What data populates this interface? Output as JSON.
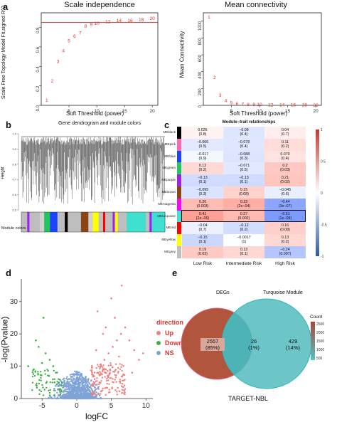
{
  "panel_a": {
    "letter": "a",
    "left": {
      "title": "Scale independence",
      "xlabel": "Soft Threshold (power)",
      "ylabel": "Scale Free Topology Model Fit,signed R^2",
      "yticks": [
        "0.0",
        "0.2",
        "0.4",
        "0.6",
        "0.8"
      ],
      "xticks": [
        "5",
        "10",
        "15",
        "20"
      ]
    },
    "right": {
      "title": "Mean connectivity",
      "xlabel": "Soft Threshold (power)",
      "ylabel": "Mean Connectivity",
      "yticks": [
        "0",
        "200",
        "400",
        "600",
        "800",
        "1000"
      ],
      "xticks": [
        "5",
        "10",
        "15",
        "20"
      ]
    }
  },
  "panel_b": {
    "letter": "b",
    "title": "Gene dendrogram and module colors",
    "ylabel": "Height",
    "yticks": [
      "1.0",
      "0.9",
      "0.8",
      "0.7",
      "0.6",
      "0.5"
    ],
    "module_label": "Module colors"
  },
  "panel_c": {
    "letter": "c",
    "title": "Module−trait relationships",
    "legend_ticks": [
      "1",
      "0.5",
      "0",
      "-0.5",
      "-1"
    ]
  },
  "panel_d": {
    "letter": "d",
    "xlabel": "logFC",
    "ylabel": "-log(Pvalue)",
    "xticks": [
      "-5",
      "0",
      "5",
      "10"
    ],
    "yticks": [
      "0",
      "10",
      "20",
      "30"
    ],
    "legend": {
      "title": "direction",
      "items": [
        {
          "label": "Up",
          "color": "#f08080"
        },
        {
          "label": "Down",
          "color": "#3cb043"
        },
        {
          "label": "NS",
          "color": "#7fa3d6"
        }
      ]
    }
  },
  "panel_e": {
    "letter": "e",
    "set_a": "DEGs",
    "set_b": "Turquoise Module",
    "left_count": "2557",
    "left_pct": "(85%)",
    "mid_count": "26",
    "mid_pct": "(1%)",
    "right_count": "429",
    "right_pct": "(14%)",
    "caption": "TARGET-NBL",
    "legend_title": "Count",
    "legend_ticks": [
      "2500",
      "2000",
      "1500",
      "1000",
      "500"
    ]
  },
  "chart_data": [
    {
      "type": "scatter",
      "title": "Scale independence",
      "xlabel": "Soft Threshold (power)",
      "ylabel": "Scale Free Topology Model Fit,signed R^2",
      "x": [
        1,
        2,
        3,
        4,
        5,
        6,
        7,
        8,
        9,
        10,
        12,
        14,
        16,
        18,
        20
      ],
      "y": [
        0.05,
        0.25,
        0.45,
        0.56,
        0.66,
        0.71,
        0.74,
        0.81,
        0.83,
        0.84,
        0.86,
        0.87,
        0.87,
        0.88,
        0.89
      ],
      "ylim": [
        0,
        0.95
      ],
      "xlim": [
        0,
        21
      ],
      "reference_line": 0.85
    },
    {
      "type": "scatter",
      "title": "Mean connectivity",
      "xlabel": "Soft Threshold (power)",
      "ylabel": "Mean Connectivity",
      "x": [
        1,
        2,
        3,
        4,
        5,
        6,
        7,
        8,
        9,
        10,
        12,
        14,
        16,
        18,
        20
      ],
      "y": [
        1050,
        330,
        120,
        55,
        30,
        18,
        13,
        10,
        8,
        7,
        5,
        4,
        3,
        3,
        2
      ],
      "ylim": [
        0,
        1100
      ],
      "xlim": [
        0,
        21
      ]
    },
    {
      "type": "heatmap",
      "title": "Module−trait relationships",
      "columns": [
        "Low Risk",
        "Intermediate Risk",
        "High Risk"
      ],
      "rows": [
        {
          "name": "MEblack",
          "color": "#000000",
          "cells": [
            [
              "0.026",
              "(0.8)",
              0.026
            ],
            [
              "−0.08",
              "(0.4)",
              -0.08
            ],
            [
              "0.04",
              "(0.7)",
              0.04
            ]
          ]
        },
        {
          "name": "MEpink",
          "color": "#ff69b4",
          "cells": [
            [
              "−0.066",
              "(0.5)",
              -0.066
            ],
            [
              "−0.078",
              "(0.4)",
              -0.078
            ],
            [
              "0.11",
              "(0.2)",
              0.11
            ]
          ]
        },
        {
          "name": "MEblue",
          "color": "#1e40ff",
          "cells": [
            [
              "−0.017",
              "(0.9)",
              -0.017
            ],
            [
              "−0.088",
              "(0.3)",
              -0.088
            ],
            [
              "0.079",
              "(0.4)",
              0.079
            ]
          ]
        },
        {
          "name": "MEgreen",
          "color": "#22c55e",
          "cells": [
            [
              "0.12",
              "(0.2)",
              0.12
            ],
            [
              "−0.071",
              "(0.5)",
              -0.071
            ],
            [
              "0.2",
              "(0.03)",
              0.2
            ]
          ]
        },
        {
          "name": "MEpurple",
          "color": "#a020f0",
          "cells": [
            [
              "−0.13",
              "(0.1)",
              -0.13
            ],
            [
              "−0.13",
              "(0.1)",
              -0.13
            ],
            [
              "0.21",
              "(0.02)",
              0.21
            ]
          ]
        },
        {
          "name": "MEbrown",
          "color": "#8b4513",
          "cells": [
            [
              "−0.095",
              "(0.3)",
              -0.095
            ],
            [
              "0.15",
              "(0.08)",
              0.15
            ],
            [
              "−0.045",
              "(0.6)",
              -0.045
            ]
          ]
        },
        {
          "name": "MEmagenta",
          "color": "#ff00ff",
          "cells": [
            [
              "0.26",
              "(0.003)",
              0.26
            ],
            [
              "0.33",
              "(2e−04)",
              0.33
            ],
            [
              "−0.44",
              "(3e−07)",
              -0.44
            ]
          ]
        },
        {
          "name": "MEturquoise",
          "color": "#40e0d0",
          "cells": [
            [
              "0.41",
              "(2e−06)",
              0.41
            ],
            [
              "0.27",
              "(0.002)",
              0.27
            ],
            [
              "−0.51",
              "(1e−09)",
              -0.51
            ]
          ]
        },
        {
          "name": "MEred",
          "color": "#ff0000",
          "cells": [
            [
              "−0.04",
              "(0.7)",
              -0.04
            ],
            [
              "−0.12",
              "(0.2)",
              -0.12
            ],
            [
              "0.16",
              "(0.08)",
              0.16
            ]
          ]
        },
        {
          "name": "MEyellow",
          "color": "#ffff00",
          "cells": [
            [
              "−0.15",
              "(0.1)",
              -0.15
            ],
            [
              "−0.0017",
              "(1)",
              -0.0017
            ],
            [
              "0.13",
              "(0.2)",
              0.13
            ]
          ]
        },
        {
          "name": "MEgrey",
          "color": "#bebebe",
          "cells": [
            [
              "0.19",
              "(0.03)",
              0.19
            ],
            [
              "0.13",
              "(0.1)",
              0.13
            ],
            [
              "−0.24",
              "(0.007)",
              -0.24
            ]
          ]
        }
      ],
      "highlighted_row": "MEturquoise",
      "scale": [
        -1,
        1
      ]
    },
    {
      "type": "scatter",
      "xlabel": "logFC",
      "ylabel": "-log(Pvalue)",
      "xlim": [
        -8,
        11
      ],
      "ylim": [
        0,
        37
      ],
      "series": [
        {
          "name": "Up",
          "color": "#f08080",
          "x": [
            2.2,
            2.6,
            3.1,
            3.5,
            4.0,
            4.6,
            5.2,
            5.8,
            6.4,
            7.0,
            7.6,
            8.3,
            9.0,
            3.0,
            4.2,
            5.5,
            6.1,
            2.8,
            3.8,
            9.6,
            6.5,
            5.0,
            8.0,
            4.8,
            3.3
          ],
          "y": [
            4,
            6,
            8,
            10,
            12,
            14,
            16,
            18,
            20,
            22,
            18,
            15,
            12,
            27,
            22,
            25,
            13,
            15,
            20,
            14,
            35,
            31,
            8,
            9,
            5
          ]
        },
        {
          "name": "Down",
          "color": "#3cb043",
          "x": [
            -2.2,
            -2.6,
            -3.0,
            -3.4,
            -3.9,
            -4.5,
            -5.0,
            -5.5,
            -6.2,
            -7.0,
            -4.0,
            -3.2,
            -2.4,
            -5.9,
            -4.8
          ],
          "y": [
            4,
            6,
            8,
            10,
            12,
            14,
            11,
            16,
            9,
            10,
            7,
            5,
            3,
            18,
            25
          ]
        },
        {
          "name": "NS",
          "color": "#7fa3d6",
          "x": [],
          "y": []
        }
      ]
    },
    {
      "type": "venn",
      "sets": [
        "DEGs",
        "Turquoise Module"
      ],
      "values": {
        "DEGs_only": 2557,
        "overlap": 26,
        "Turquoise_only": 429
      },
      "percentages": {
        "DEGs_only": "85%",
        "overlap": "1%",
        "Turquoise_only": "14%"
      },
      "legend": {
        "title": "Count",
        "ticks": [
          500,
          1000,
          1500,
          2000,
          2500
        ]
      }
    }
  ]
}
